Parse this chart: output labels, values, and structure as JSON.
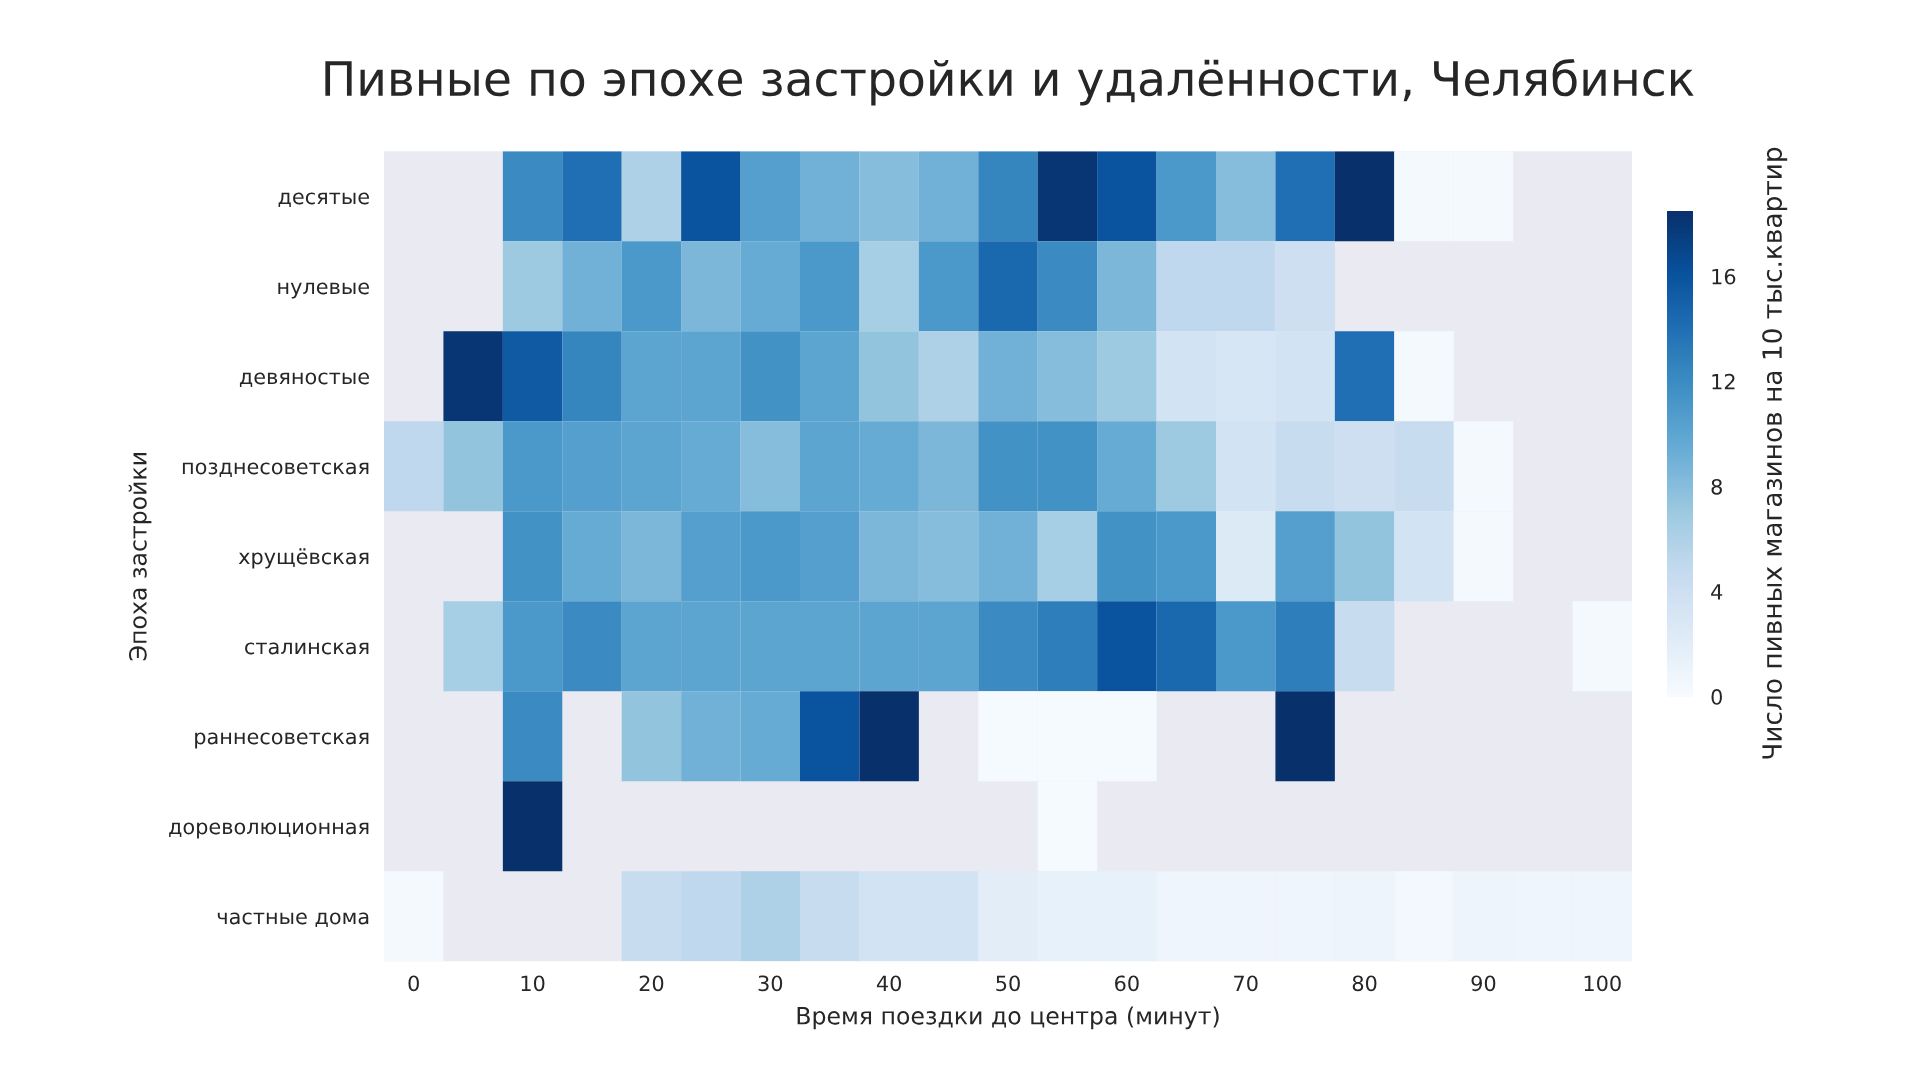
{
  "chart_data": {
    "type": "heatmap",
    "title": "Пивные по эпохе застройки и удалённости, Челябинск",
    "xlabel": "Время поездки до центра (минут)",
    "ylabel": "Эпоха застройки",
    "clabel": "Число пивных магазинов на 10 тыс.квартир",
    "categories": [
      "0",
      null,
      "10",
      null,
      "20",
      null,
      "30",
      null,
      "40",
      null,
      "50",
      null,
      "60",
      null,
      "70",
      null,
      "80",
      null,
      "90",
      null,
      "100"
    ],
    "y_categories": [
      "десятые",
      "нулевые",
      "девяностые",
      "позднесоветская",
      "хрущёвская",
      "сталинская",
      "раннесоветская",
      "дореволюционная",
      "частные дома"
    ],
    "cells": [
      [
        null,
        null,
        12,
        14,
        6,
        16,
        10.5,
        9,
        8,
        9,
        12.5,
        18,
        16,
        11,
        8,
        14,
        18.5,
        0.3,
        0.3,
        null,
        null
      ],
      [
        null,
        null,
        7,
        9,
        11,
        8.5,
        9.5,
        11,
        6.5,
        11,
        14.5,
        12,
        8.5,
        5,
        5,
        4,
        null,
        null,
        null,
        null,
        null
      ],
      [
        null,
        18,
        15.5,
        12.5,
        10,
        10,
        11.5,
        10,
        7.5,
        6,
        9,
        8,
        7,
        3.5,
        3,
        3.5,
        14,
        0.3,
        null,
        null,
        null
      ],
      [
        5,
        7.5,
        11,
        10.5,
        10,
        9.5,
        8,
        10,
        9.5,
        8.5,
        11.5,
        11.5,
        9.5,
        7,
        3.5,
        4.5,
        4,
        4.5,
        0.3,
        null,
        null
      ],
      [
        null,
        null,
        11.5,
        9.5,
        8.5,
        10.5,
        11,
        10.5,
        8.5,
        8,
        9,
        6.5,
        11.5,
        11,
        2.5,
        10.5,
        7.5,
        3.5,
        0.3,
        null,
        null
      ],
      [
        null,
        6.5,
        11,
        12,
        10,
        10,
        10,
        10,
        10,
        10,
        12,
        13,
        16,
        14.5,
        11,
        13,
        4.5,
        null,
        null,
        null,
        0.3
      ],
      [
        null,
        null,
        12,
        null,
        7.5,
        9,
        9.5,
        16,
        18.5,
        null,
        0.2,
        0.2,
        0.2,
        null,
        null,
        18.5,
        null,
        null,
        null,
        null,
        null
      ],
      [
        null,
        null,
        18.5,
        null,
        null,
        null,
        null,
        null,
        null,
        null,
        null,
        0.2,
        null,
        null,
        null,
        null,
        null,
        null,
        null,
        null,
        null
      ],
      [
        0.3,
        null,
        null,
        null,
        4.5,
        5,
        6,
        4.5,
        3.5,
        3.5,
        2,
        1.5,
        1.5,
        0.8,
        0.8,
        0.8,
        1,
        0.5,
        1,
        0.8,
        0.8
      ]
    ],
    "clim": [
      0,
      18.5
    ],
    "cticks": [
      0,
      4,
      8,
      12,
      16
    ],
    "grid": false
  }
}
